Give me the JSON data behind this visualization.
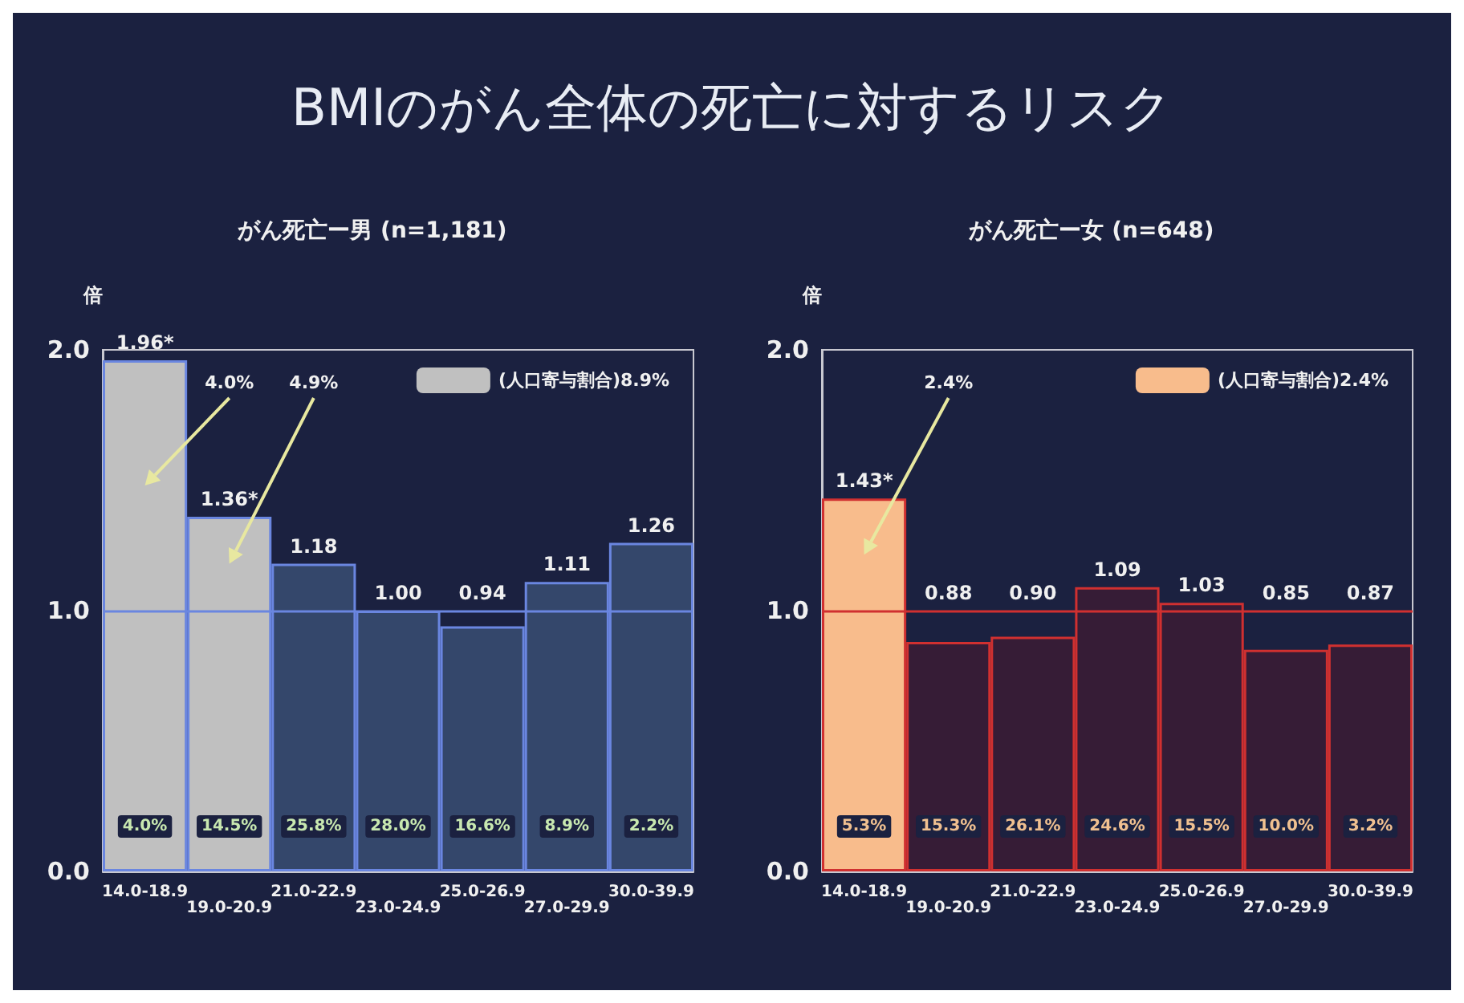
{
  "chart_data": [
    {
      "type": "bar",
      "title": "BMIのがん全体の死亡に対するリスク",
      "subtitle": "がん死亡ー男 (n=1,181)",
      "ylabel": "倍",
      "categories": [
        "14.0-18.9",
        "19.0-20.9",
        "21.0-22.9",
        "23.0-24.9",
        "25.0-26.9",
        "27.0-29.9",
        "30.0-39.9"
      ],
      "series": [
        {
          "name": "(人口寄与割合)8.9%",
          "color": "#c0c0c0",
          "values": [
            1.96,
            1.36,
            1.18,
            1.0,
            0.94,
            1.11,
            1.26
          ],
          "colors": [
            "#c0c0c0",
            "#c0c0c0",
            "#34476b",
            "#34476b",
            "#34476b",
            "#34476b",
            "#34476b"
          ],
          "value_labels": [
            "1.96*",
            "1.36*",
            "1.18",
            "1.00",
            "0.94",
            "1.11",
            "1.26"
          ]
        }
      ],
      "ylim": [
        0,
        2
      ],
      "yticks": [
        {
          "value": 0,
          "label": "0.0"
        },
        {
          "value": 1,
          "label": "1.0"
        },
        {
          "value": 2,
          "label": "2.0"
        }
      ],
      "ref_lines": [
        {
          "axis": "y",
          "value": 1,
          "color": "#6a86e0"
        }
      ],
      "annotations": [
        "4.0%",
        "4.9%",
        "4.0%",
        "14.5%",
        "25.8%",
        "28.0%",
        "16.6%",
        "8.9%",
        "2.2%"
      ],
      "grid": false,
      "legend": "top right"
    },
    {
      "type": "bar",
      "subtitle": "がん死亡ー女 (n=648)",
      "ylabel": "倍",
      "categories": [
        "14.0-18.9",
        "19.0-20.9",
        "21.0-22.9",
        "23.0-24.9",
        "25.0-26.9",
        "27.0-29.9",
        "30.0-39.9"
      ],
      "series": [
        {
          "name": "(人口寄与割合)2.4%",
          "color": "#f8bc8c",
          "values": [
            1.43,
            0.88,
            0.9,
            1.09,
            1.03,
            0.85,
            0.87
          ],
          "colors": [
            "#f8bc8c",
            "#361c36",
            "#361c36",
            "#361c36",
            "#361c36",
            "#361c36",
            "#361c36"
          ],
          "value_labels": [
            "1.43*",
            "0.88",
            "0.90",
            "1.09",
            "1.03",
            "0.85",
            "0.87"
          ]
        }
      ],
      "ylim": [
        0,
        2
      ],
      "yticks": [
        {
          "value": 0,
          "label": "0.0"
        },
        {
          "value": 1,
          "label": "1.0"
        },
        {
          "value": 2,
          "label": "2.0"
        }
      ],
      "ref_lines": [
        {
          "axis": "y",
          "value": 1,
          "color": "#d03030"
        }
      ],
      "annotations": [
        "2.4%",
        "5.3%",
        "15.3%",
        "26.1%",
        "24.6%",
        "15.5%",
        "10.0%",
        "3.2%"
      ],
      "grid": false,
      "legend": "top right"
    }
  ]
}
